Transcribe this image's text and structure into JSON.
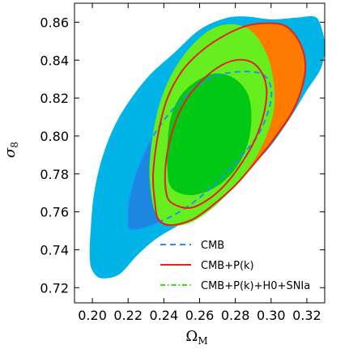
{
  "chart_data": {
    "type": "contour",
    "xlabel": "Ω",
    "xlabel_sub": "M",
    "ylabel": "σ",
    "ylabel_sub": "8",
    "xlim": [
      0.19,
      0.33
    ],
    "ylim": [
      0.712,
      0.87
    ],
    "xticks": [
      0.2,
      0.22,
      0.24,
      0.26,
      0.28,
      0.3,
      0.32
    ],
    "yticks": [
      0.72,
      0.74,
      0.76,
      0.78,
      0.8,
      0.82,
      0.84,
      0.86
    ],
    "xtick_labels": [
      "0.20",
      "0.22",
      "0.24",
      "0.26",
      "0.28",
      "0.30",
      "0.32"
    ],
    "ytick_labels": [
      "0.72",
      "0.74",
      "0.76",
      "0.78",
      "0.80",
      "0.82",
      "0.84",
      "0.86"
    ],
    "grid": false,
    "legend_position": "lower-right",
    "legend": [
      {
        "label": "CMB",
        "linestyle": "dashed",
        "color": "#1e90ff"
      },
      {
        "label": "CMB+P(k)",
        "linestyle": "solid",
        "color": "#e2231a"
      },
      {
        "label": "CMB+P(k)+H0+SNIa",
        "linestyle": "dashdot",
        "color": "#33dd11"
      }
    ],
    "series": [
      {
        "name": "CMB",
        "level": "95%",
        "fill": "#00b4e8",
        "points": [
          [
            0.1985,
            0.736
          ],
          [
            0.2,
            0.729
          ],
          [
            0.205,
            0.725
          ],
          [
            0.215,
            0.727
          ],
          [
            0.225,
            0.737
          ],
          [
            0.236,
            0.746
          ],
          [
            0.25,
            0.754
          ],
          [
            0.262,
            0.763
          ],
          [
            0.275,
            0.772
          ],
          [
            0.288,
            0.783
          ],
          [
            0.3,
            0.795
          ],
          [
            0.311,
            0.81
          ],
          [
            0.32,
            0.824
          ],
          [
            0.328,
            0.836
          ],
          [
            0.33,
            0.848
          ],
          [
            0.3275,
            0.859
          ],
          [
            0.324,
            0.863
          ],
          [
            0.315,
            0.8625
          ],
          [
            0.3,
            0.8615
          ],
          [
            0.286,
            0.863
          ],
          [
            0.274,
            0.862
          ],
          [
            0.26,
            0.856
          ],
          [
            0.246,
            0.844
          ],
          [
            0.23,
            0.83
          ],
          [
            0.215,
            0.81
          ],
          [
            0.206,
            0.79
          ],
          [
            0.201,
            0.77
          ],
          [
            0.199,
            0.75
          ]
        ]
      },
      {
        "name": "CMB",
        "level": "68%",
        "fill": "#1c86e0",
        "points": [
          [
            0.221,
            0.751
          ],
          [
            0.23,
            0.752
          ],
          [
            0.245,
            0.758
          ],
          [
            0.258,
            0.766
          ],
          [
            0.27,
            0.776
          ],
          [
            0.283,
            0.789
          ],
          [
            0.293,
            0.801
          ],
          [
            0.299,
            0.815
          ],
          [
            0.3,
            0.825
          ],
          [
            0.296,
            0.832
          ],
          [
            0.286,
            0.834
          ],
          [
            0.27,
            0.832
          ],
          [
            0.257,
            0.825
          ],
          [
            0.245,
            0.814
          ],
          [
            0.234,
            0.8
          ],
          [
            0.226,
            0.784
          ],
          [
            0.221,
            0.768
          ],
          [
            0.22,
            0.757
          ]
        ]
      },
      {
        "name": "CMB+P(k)",
        "level": "95%",
        "fill": "#ff7a00",
        "points": [
          [
            0.237,
            0.756
          ],
          [
            0.244,
            0.753
          ],
          [
            0.256,
            0.756
          ],
          [
            0.268,
            0.764
          ],
          [
            0.28,
            0.774
          ],
          [
            0.292,
            0.787
          ],
          [
            0.302,
            0.799
          ],
          [
            0.312,
            0.813
          ],
          [
            0.318,
            0.828
          ],
          [
            0.319,
            0.84
          ],
          [
            0.315,
            0.851
          ],
          [
            0.308,
            0.858
          ],
          [
            0.298,
            0.8595
          ],
          [
            0.286,
            0.858
          ],
          [
            0.272,
            0.852
          ],
          [
            0.26,
            0.844
          ],
          [
            0.25,
            0.834
          ],
          [
            0.242,
            0.82
          ],
          [
            0.237,
            0.802
          ],
          [
            0.234,
            0.78
          ],
          [
            0.235,
            0.765
          ]
        ]
      },
      {
        "name": "CMB+P(k)+H0+SNIa",
        "level": "95%",
        "fill": "#66ee1e",
        "points": [
          [
            0.235,
            0.76
          ],
          [
            0.242,
            0.753
          ],
          [
            0.254,
            0.754
          ],
          [
            0.266,
            0.761
          ],
          [
            0.276,
            0.77
          ],
          [
            0.286,
            0.781
          ],
          [
            0.294,
            0.793
          ],
          [
            0.3,
            0.807
          ],
          [
            0.302,
            0.82
          ],
          [
            0.3,
            0.836
          ],
          [
            0.295,
            0.848
          ],
          [
            0.288,
            0.856
          ],
          [
            0.278,
            0.859
          ],
          [
            0.266,
            0.856
          ],
          [
            0.254,
            0.846
          ],
          [
            0.244,
            0.832
          ],
          [
            0.237,
            0.815
          ],
          [
            0.233,
            0.795
          ],
          [
            0.232,
            0.778
          ]
        ]
      },
      {
        "name": "CMB+P(k)+H0+SNIa",
        "level": "68%",
        "fill": "#00c814",
        "points": [
          [
            0.244,
            0.773
          ],
          [
            0.252,
            0.769
          ],
          [
            0.262,
            0.77
          ],
          [
            0.272,
            0.775
          ],
          [
            0.281,
            0.784
          ],
          [
            0.287,
            0.796
          ],
          [
            0.289,
            0.81
          ],
          [
            0.287,
            0.822
          ],
          [
            0.28,
            0.83
          ],
          [
            0.27,
            0.833
          ],
          [
            0.26,
            0.83
          ],
          [
            0.25,
            0.822
          ],
          [
            0.244,
            0.81
          ],
          [
            0.242,
            0.795
          ],
          [
            0.242,
            0.782
          ]
        ]
      },
      {
        "name": "CMB",
        "level": "68%",
        "stroke": "#1e90ff",
        "dash": "7,5",
        "points": [
          [
            0.221,
            0.751
          ],
          [
            0.23,
            0.752
          ],
          [
            0.245,
            0.758
          ],
          [
            0.258,
            0.766
          ],
          [
            0.27,
            0.776
          ],
          [
            0.283,
            0.789
          ],
          [
            0.293,
            0.801
          ],
          [
            0.299,
            0.815
          ],
          [
            0.3,
            0.825
          ],
          [
            0.296,
            0.832
          ],
          [
            0.286,
            0.834
          ],
          [
            0.27,
            0.832
          ],
          [
            0.257,
            0.825
          ],
          [
            0.245,
            0.814
          ],
          [
            0.234,
            0.8
          ],
          [
            0.226,
            0.784
          ],
          [
            0.221,
            0.768
          ],
          [
            0.22,
            0.757
          ]
        ]
      },
      {
        "name": "CMB+P(k)",
        "level": "95%",
        "stroke": "#e2231a",
        "points": [
          [
            0.237,
            0.756
          ],
          [
            0.244,
            0.753
          ],
          [
            0.256,
            0.756
          ],
          [
            0.268,
            0.764
          ],
          [
            0.28,
            0.774
          ],
          [
            0.292,
            0.787
          ],
          [
            0.302,
            0.799
          ],
          [
            0.312,
            0.813
          ],
          [
            0.318,
            0.828
          ],
          [
            0.319,
            0.84
          ],
          [
            0.315,
            0.851
          ],
          [
            0.308,
            0.858
          ],
          [
            0.298,
            0.8595
          ],
          [
            0.286,
            0.858
          ],
          [
            0.272,
            0.852
          ],
          [
            0.26,
            0.844
          ],
          [
            0.25,
            0.834
          ],
          [
            0.242,
            0.82
          ],
          [
            0.237,
            0.802
          ],
          [
            0.234,
            0.78
          ],
          [
            0.235,
            0.765
          ]
        ]
      },
      {
        "name": "CMB+P(k)",
        "level": "68%",
        "stroke": "#e2231a",
        "points": [
          [
            0.244,
            0.765
          ],
          [
            0.254,
            0.762
          ],
          [
            0.264,
            0.766
          ],
          [
            0.274,
            0.774
          ],
          [
            0.283,
            0.785
          ],
          [
            0.291,
            0.798
          ],
          [
            0.296,
            0.812
          ],
          [
            0.2975,
            0.824
          ],
          [
            0.295,
            0.833
          ],
          [
            0.289,
            0.839
          ],
          [
            0.28,
            0.84
          ],
          [
            0.27,
            0.836
          ],
          [
            0.259,
            0.827
          ],
          [
            0.25,
            0.815
          ],
          [
            0.244,
            0.8
          ],
          [
            0.241,
            0.785
          ],
          [
            0.241,
            0.772
          ]
        ]
      }
    ]
  }
}
